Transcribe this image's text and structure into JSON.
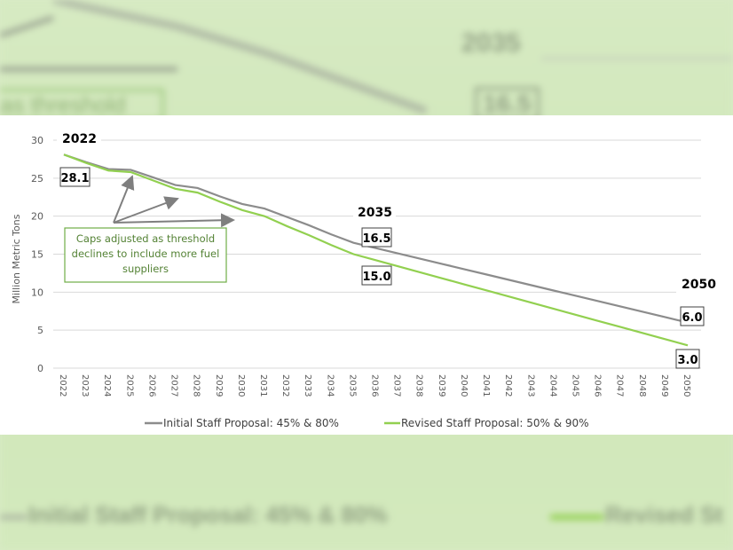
{
  "colors": {
    "initial": "#8c8c8c",
    "revised": "#92d050",
    "annotation_border": "#70ad47",
    "annotation_text": "#548235",
    "background": "#d9ebc6"
  },
  "chart_data": {
    "type": "line",
    "title": "",
    "xlabel": "",
    "ylabel": "Million Metric Tons",
    "ylim": [
      0,
      30
    ],
    "yticks": [
      0,
      5,
      10,
      15,
      20,
      25,
      30
    ],
    "grid": true,
    "legend_position": "bottom",
    "x": [
      2022,
      2023,
      2024,
      2025,
      2026,
      2027,
      2028,
      2029,
      2030,
      2031,
      2032,
      2033,
      2034,
      2035,
      2036,
      2037,
      2038,
      2039,
      2040,
      2041,
      2042,
      2043,
      2044,
      2045,
      2046,
      2047,
      2048,
      2049,
      2050
    ],
    "series": [
      {
        "name": "Initial Staff Proposal: 45% & 80%",
        "color": "#8c8c8c",
        "values": [
          28.1,
          27.1,
          26.2,
          26.1,
          25.1,
          24.1,
          23.7,
          22.6,
          21.6,
          21.0,
          19.9,
          18.8,
          17.6,
          16.5,
          15.8,
          15.1,
          14.4,
          13.7,
          13.0,
          12.3,
          11.6,
          10.9,
          10.2,
          9.5,
          8.8,
          8.1,
          7.4,
          6.7,
          6.0
        ]
      },
      {
        "name": "Revised Staff Proposal: 50% & 90%",
        "color": "#92d050",
        "values": [
          28.1,
          27.0,
          26.0,
          25.8,
          24.7,
          23.6,
          23.1,
          21.9,
          20.8,
          20.0,
          18.7,
          17.5,
          16.2,
          15.0,
          14.2,
          13.4,
          12.6,
          11.8,
          11.0,
          10.2,
          9.4,
          8.6,
          7.8,
          7.0,
          6.2,
          5.4,
          4.6,
          3.8,
          3.0
        ]
      }
    ],
    "annotations": {
      "year_2022": "2022",
      "year_2035": "2035",
      "year_2050": "2050",
      "label_start": "28.1",
      "label_initial_2035": "16.5",
      "label_revised_2035": "15.0",
      "label_initial_2050": "6.0",
      "label_revised_2050": "3.0",
      "caps_note": [
        "Caps adjusted as threshold",
        "declines to include more fuel",
        "suppliers"
      ]
    }
  },
  "background": {
    "revised_partial": "Revised St",
    "threshold_partial": "as threshold"
  }
}
